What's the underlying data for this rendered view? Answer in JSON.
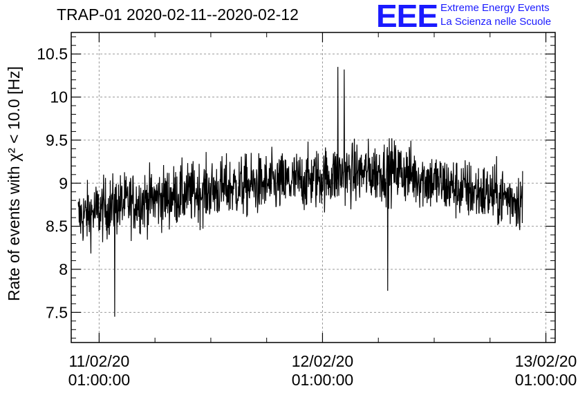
{
  "header": {
    "title": "TRAP-01 2020-02-11--2020-02-12",
    "logo_text": "EEE",
    "logo_line1": "Extreme Energy Events",
    "logo_line2": "La Scienza nelle Scuole",
    "logo_color": "#1a1aff"
  },
  "chart_data": {
    "type": "line",
    "title": "TRAP-01 2020-02-11--2020-02-12",
    "ylabel": "Rate of events with χ² < 10.0 [Hz]",
    "xlabel": "",
    "ylim": [
      7.15,
      10.75
    ],
    "yticks": [
      7.5,
      8,
      8.5,
      9,
      9.5,
      10,
      10.5
    ],
    "ytick_labels": [
      "7.5",
      "8",
      "8.5",
      "9",
      "9.5",
      "10",
      "10.5"
    ],
    "xlim": [
      "2020-02-10T22:00:00",
      "2020-02-13T02:00:00"
    ],
    "xticks": [
      {
        "date": "11/02/20",
        "time": "01:00:00"
      },
      {
        "date": "12/02/20",
        "time": "01:00:00"
      },
      {
        "date": "13/02/20",
        "time": "01:00:00"
      }
    ],
    "grid": true,
    "line_color": "#000000",
    "series": [
      {
        "x_start": "2020-02-10T22:45:00",
        "x_end": "2020-02-12T22:30:00",
        "trend": [
          {
            "t": "2020-02-10T22:45:00",
            "y": 8.6
          },
          {
            "t": "2020-02-11T03:00:00",
            "y": 8.75
          },
          {
            "t": "2020-02-11T09:00:00",
            "y": 8.85
          },
          {
            "t": "2020-02-11T15:00:00",
            "y": 8.95
          },
          {
            "t": "2020-02-11T21:00:00",
            "y": 9.0
          },
          {
            "t": "2020-02-12T03:00:00",
            "y": 9.1
          },
          {
            "t": "2020-02-12T09:00:00",
            "y": 9.15
          },
          {
            "t": "2020-02-12T15:00:00",
            "y": 8.95
          },
          {
            "t": "2020-02-12T22:30:00",
            "y": 8.8
          }
        ],
        "noise_amplitude": 0.35,
        "extremes": [
          {
            "t": "2020-02-11T02:40:00",
            "y": 7.45
          },
          {
            "t": "2020-02-12T02:40:00",
            "y": 10.35
          },
          {
            "t": "2020-02-12T03:20:00",
            "y": 10.32
          },
          {
            "t": "2020-02-12T08:00:00",
            "y": 7.75
          }
        ]
      }
    ]
  }
}
